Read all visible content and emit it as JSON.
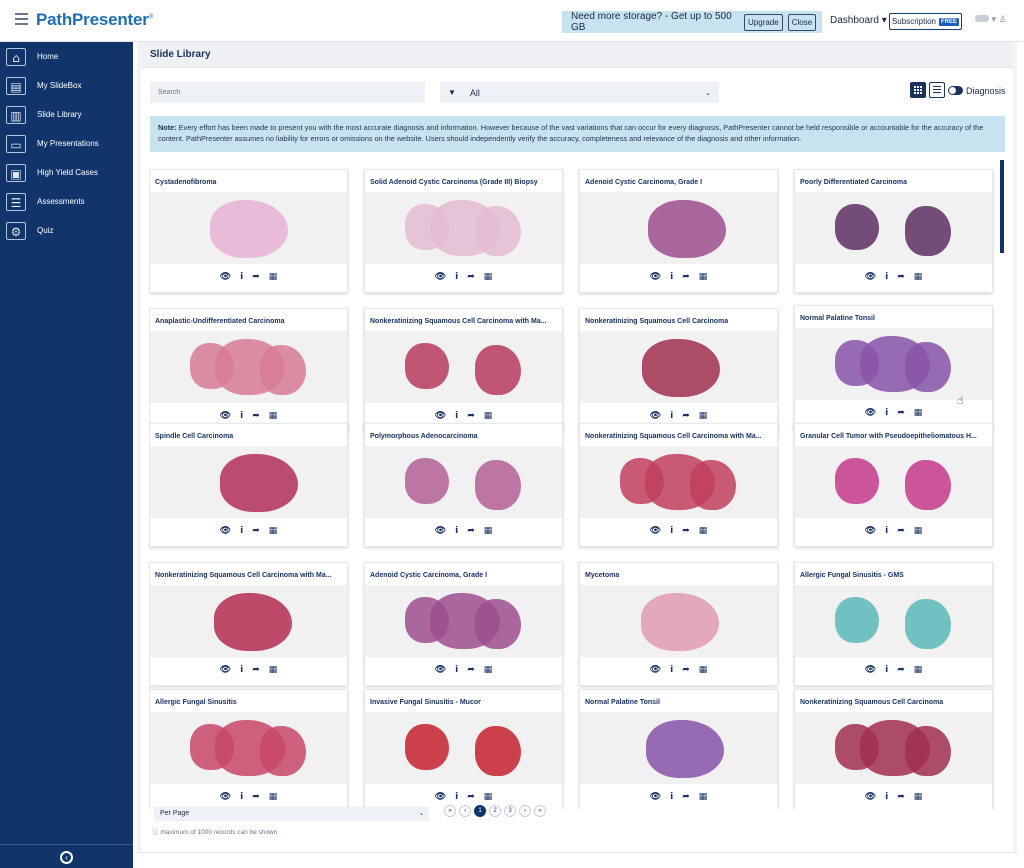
{
  "brand": {
    "name": "PathPresenter",
    "mark": "®"
  },
  "promo": {
    "text": "Need more storage? - Get up to 500 GB",
    "upgrade_label": "Upgrade",
    "close_label": "Close"
  },
  "header": {
    "dashboard_label": "Dashboard ▾",
    "subscription_label": "Subscription",
    "subscription_badge": "FREE",
    "user_caret": "▾"
  },
  "sidebar": {
    "items": [
      {
        "label": "Home",
        "icon": "home-icon"
      },
      {
        "label": "My SlideBox",
        "icon": "slidebox-icon"
      },
      {
        "label": "Slide Library",
        "icon": "library-icon"
      },
      {
        "label": "My Presentations",
        "icon": "presentation-icon"
      },
      {
        "label": "High Yield Cases",
        "icon": "cases-icon"
      },
      {
        "label": "Assessments",
        "icon": "assessment-icon"
      },
      {
        "label": "Quiz",
        "icon": "quiz-icon"
      }
    ],
    "collapse_icon": "collapse-icon"
  },
  "page": {
    "title": "Slide Library"
  },
  "toolbar": {
    "search_placeholder": "Search",
    "filter_value": "All",
    "diagnosis_label": "Diagnosis"
  },
  "note": {
    "label": "Note:",
    "text": " Every effort has been made to present you with the most accurate diagnosis and information. However because of the vast variations that can occur for every diagnosis, PathPresenter cannot be held responsible or accountable for the accuracy of the content. PathPresenter assumes no liability for errors or omissions on the website. Users should independently verify the accuracy, completeness and relevance of the diagnosis and other information."
  },
  "cards": [
    {
      "title": "Cystadenofibroma",
      "color": "#e6b3d4"
    },
    {
      "title": "Solid Adenoid Cystic Carcinoma (Grade III) Biopsy",
      "color": "#e4bcd2"
    },
    {
      "title": "Adenoid Cystic Carcinoma, Grade I",
      "color": "#9c4f8e"
    },
    {
      "title": "Poorly Differentiated Carcinoma",
      "color": "#5e2f63"
    },
    {
      "title": "Anaplastic-Undifferentiated Carcinoma",
      "color": "#d77c95"
    },
    {
      "title": "Nonkeratinizing Squamous Cell Carcinoma with Ma...",
      "color": "#b83a5e"
    },
    {
      "title": "Nonkeratinizing Squamous Cell Carcinoma",
      "color": "#a12f4f"
    },
    {
      "title": "Normal Palatine Tonsil",
      "color": "#8754a8"
    },
    {
      "title": "Spindle Cell Carcinoma",
      "color": "#b32e5e"
    },
    {
      "title": "Polymorphous Adenocarcinoma",
      "color": "#b46097"
    },
    {
      "title": "Nonkeratinizing Squamous Cell Carcinoma with Ma...",
      "color": "#c13f5d"
    },
    {
      "title": "Granular Cell Tumor with Pseudoepitheliomatous H...",
      "color": "#c6388a"
    },
    {
      "title": "Nonkeratinizing Squamous Cell Carcinoma with Ma...",
      "color": "#b32d50"
    },
    {
      "title": "Adenoid Cystic Carcinoma, Grade I",
      "color": "#9c4f8e"
    },
    {
      "title": "Mycetoma",
      "color": "#e29bb1"
    },
    {
      "title": "Allergic Fungal Sinusitis - GMS",
      "color": "#5bb8b7"
    },
    {
      "title": "Allergic Fungal Sinusitis",
      "color": "#c74869"
    },
    {
      "title": "Invasive Fungal Sinusitis - Mucor",
      "color": "#c5212e"
    },
    {
      "title": "Normal Palatine Tonsil",
      "color": "#8754a8"
    },
    {
      "title": "Nonkeratinizing Squamous Cell Carcinoma",
      "color": "#a12f4f"
    }
  ],
  "card_actions": {
    "view": "👁",
    "info": "i",
    "share": "➦",
    "qr": "▦"
  },
  "pagination": {
    "per_page_label": "Per Page",
    "first": "«",
    "prev": "‹",
    "pages": [
      "1",
      "2",
      "3"
    ],
    "next": "›",
    "last": "»",
    "max_note": "maximum of 1000 records can be shown"
  }
}
